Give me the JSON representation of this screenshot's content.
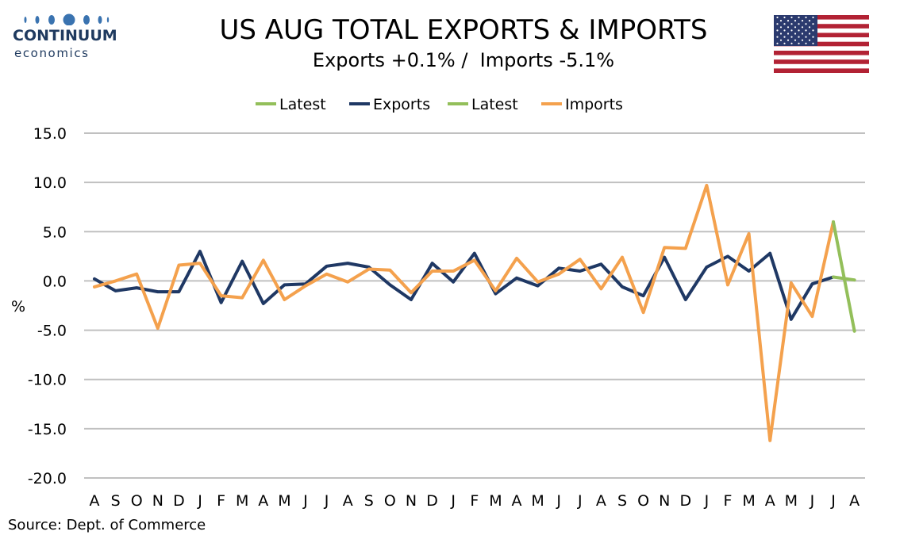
{
  "logo": {
    "brand": "CONTINUUM",
    "sub": "economics"
  },
  "header": {
    "title": "US AUG TOTAL EXPORTS & IMPORTS",
    "subtitle": "Exports +0.1% /  Imports -5.1%"
  },
  "flag": {
    "name": "us-flag-icon"
  },
  "source": "Source: Dept. of Commerce",
  "colors": {
    "exports": "#1f3864",
    "imports": "#f4a14d",
    "latest": "#93bf5a",
    "grid": "#c0c0c0"
  },
  "chart_data": {
    "type": "line",
    "title": "US AUG TOTAL EXPORTS & IMPORTS",
    "subtitle": "Exports +0.1% /  Imports -5.1%",
    "xlabel": "",
    "ylabel": "%",
    "ylim": [
      -20,
      15
    ],
    "yticks": [
      15,
      10,
      5,
      0,
      -5,
      -10,
      -15,
      -20
    ],
    "ytick_labels": [
      "15.0",
      "10.0",
      "5.0",
      "0.0",
      "-5.0",
      "-10.0",
      "-15.0",
      "-20.0"
    ],
    "grid": true,
    "legend_position": "top",
    "categories": [
      "A",
      "S",
      "O",
      "N",
      "D",
      "J",
      "F",
      "M",
      "A",
      "M",
      "J",
      "J",
      "A",
      "S",
      "O",
      "N",
      "D",
      "J",
      "F",
      "M",
      "A",
      "M",
      "J",
      "J",
      "A",
      "S",
      "O",
      "N",
      "D",
      "J",
      "F",
      "M",
      "A",
      "M",
      "J",
      "J",
      "A"
    ],
    "legend": [
      {
        "label": "Latest",
        "color": "#93bf5a"
      },
      {
        "label": "Exports",
        "color": "#1f3864"
      },
      {
        "label": "Latest",
        "color": "#93bf5a"
      },
      {
        "label": "Imports",
        "color": "#f4a14d"
      }
    ],
    "series": [
      {
        "name": "Exports",
        "color": "#1f3864",
        "values": [
          0.2,
          -1.0,
          -0.7,
          -1.1,
          -1.1,
          3.0,
          -2.2,
          2.0,
          -2.3,
          -0.4,
          -0.3,
          1.5,
          1.8,
          1.4,
          -0.4,
          -1.9,
          1.8,
          -0.1,
          2.8,
          -1.3,
          0.3,
          -0.5,
          1.3,
          1.0,
          1.7,
          -0.6,
          -1.5,
          2.4,
          -1.9,
          1.4,
          2.5,
          1.0,
          2.8,
          -3.9,
          -0.3,
          0.4,
          null
        ]
      },
      {
        "name": "Imports",
        "color": "#f4a14d",
        "values": [
          -0.6,
          0.0,
          0.7,
          -4.8,
          1.6,
          1.8,
          -1.5,
          -1.7,
          2.1,
          -1.9,
          -0.5,
          0.7,
          -0.1,
          1.2,
          1.1,
          -1.2,
          1.0,
          1.0,
          2.1,
          -1.0,
          2.3,
          -0.1,
          0.7,
          2.2,
          -0.8,
          2.4,
          -3.2,
          3.4,
          3.3,
          9.7,
          -0.4,
          4.8,
          -16.2,
          -0.2,
          -3.6,
          6.0,
          null
        ]
      },
      {
        "name": "Latest",
        "color": "#93bf5a",
        "role": "exports-latest",
        "values": [
          null,
          null,
          null,
          null,
          null,
          null,
          null,
          null,
          null,
          null,
          null,
          null,
          null,
          null,
          null,
          null,
          null,
          null,
          null,
          null,
          null,
          null,
          null,
          null,
          null,
          null,
          null,
          null,
          null,
          null,
          null,
          null,
          null,
          null,
          null,
          0.4,
          0.1
        ]
      },
      {
        "name": "Latest",
        "color": "#93bf5a",
        "role": "imports-latest",
        "values": [
          null,
          null,
          null,
          null,
          null,
          null,
          null,
          null,
          null,
          null,
          null,
          null,
          null,
          null,
          null,
          null,
          null,
          null,
          null,
          null,
          null,
          null,
          null,
          null,
          null,
          null,
          null,
          null,
          null,
          null,
          null,
          null,
          null,
          null,
          null,
          6.0,
          -5.1
        ]
      }
    ]
  }
}
